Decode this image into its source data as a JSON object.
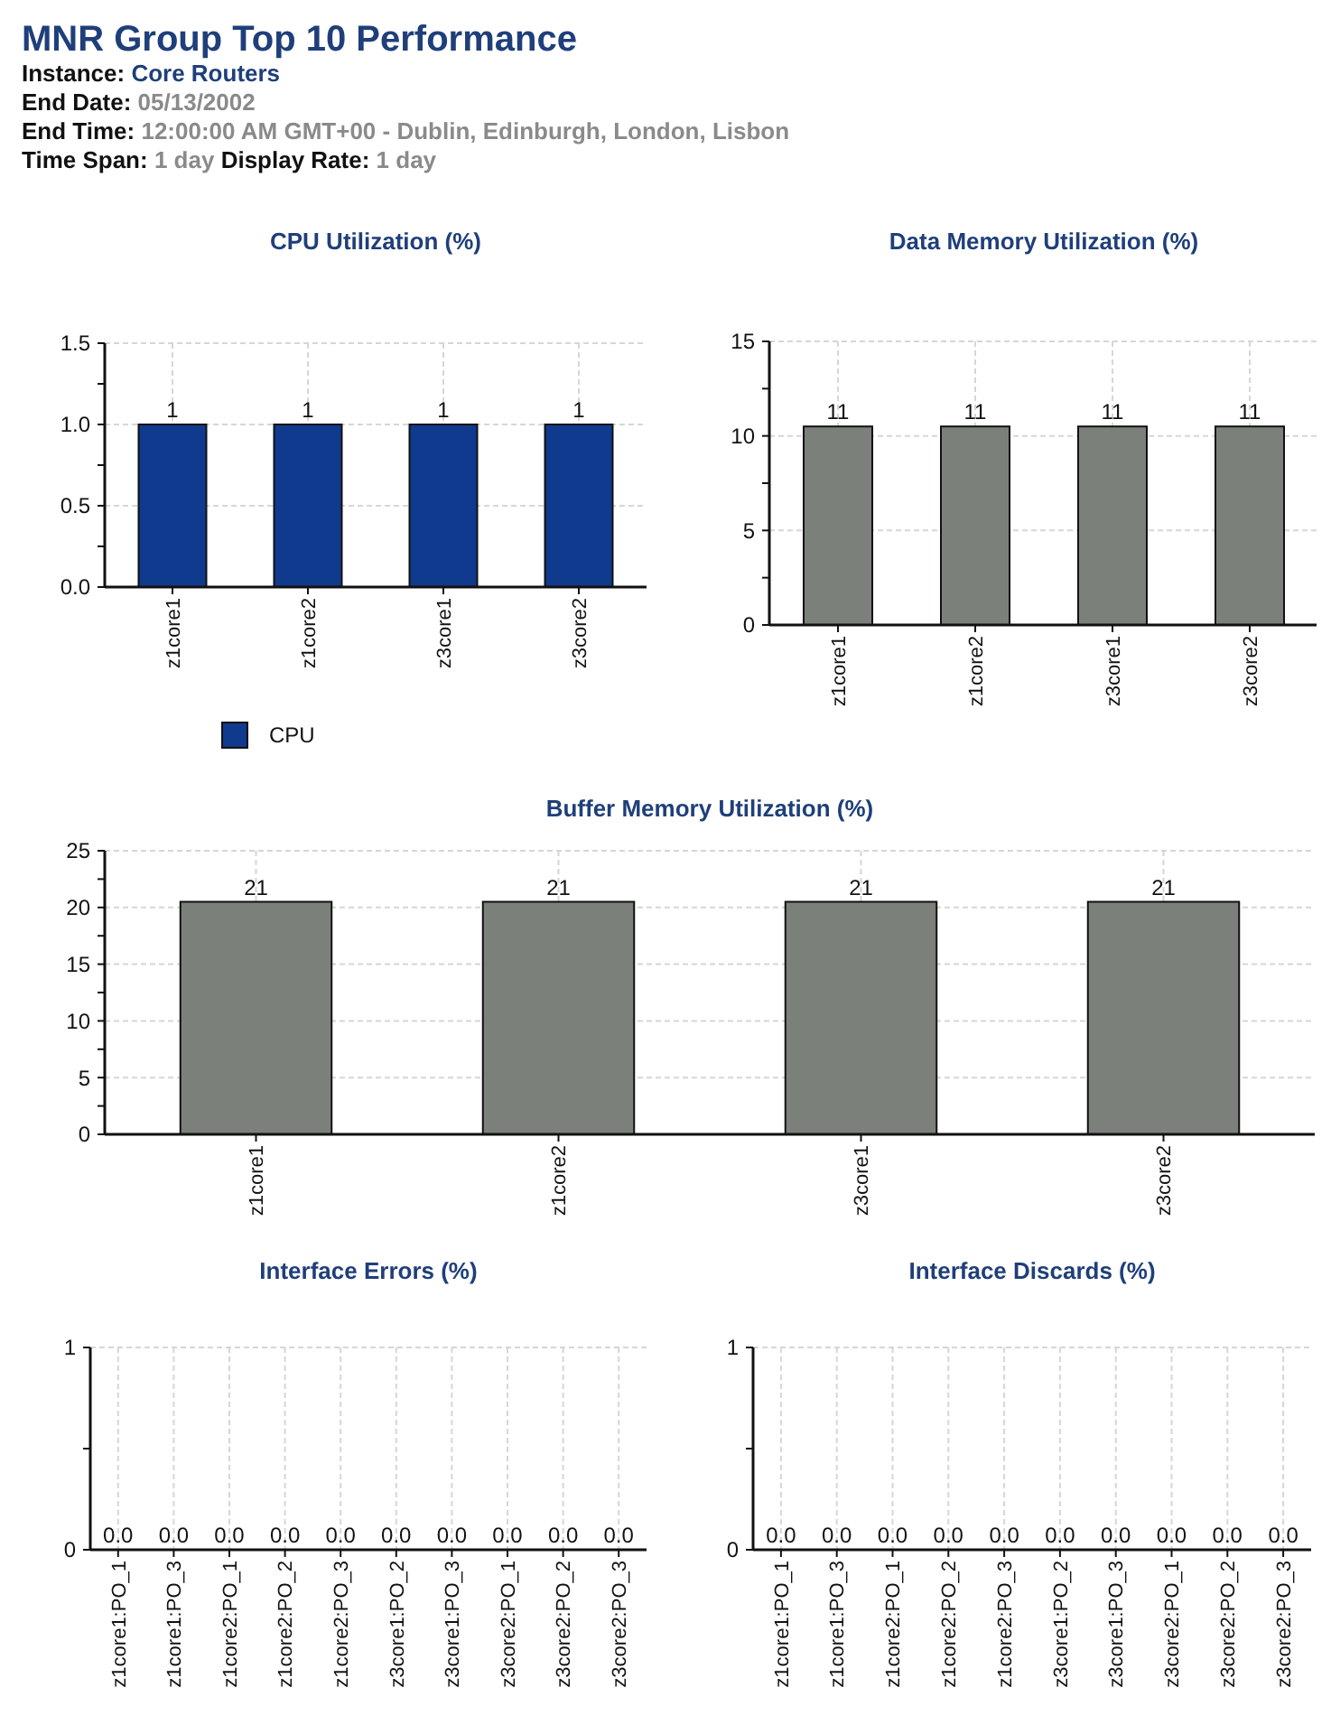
{
  "chart_data": [
    {
      "type": "other",
      "title": "MNR Group Top 10 Performance",
      "annotations": [
        "Instance: Core Routers",
        "End Date: 05/13/2002",
        "End Time: 12:00:00 AM GMT+00 - Dublin, Edinburgh, London, Lisbon",
        "Time Span: 1 day Display Rate: 1 day"
      ]
    },
    {
      "type": "bar",
      "title": "CPU Utilization (%)",
      "categories": [
        "z1core1",
        "z1core2",
        "z3core1",
        "z3core2"
      ],
      "series": [
        {
          "name": "CPU",
          "color": "#103a8e",
          "values": [
            1,
            1,
            1,
            1
          ],
          "value_labels": [
            "1",
            "1",
            "1",
            "1"
          ]
        }
      ],
      "ylim": [
        0,
        1.5
      ],
      "yticks": [
        {
          "value": 0,
          "label": "0.0"
        },
        {
          "value": 0.25,
          "label": null
        },
        {
          "value": 0.5,
          "label": "0.5"
        },
        {
          "value": 0.75,
          "label": null
        },
        {
          "value": 1,
          "label": "1.0"
        },
        {
          "value": 1.25,
          "label": null
        },
        {
          "value": 1.5,
          "label": "1.5"
        }
      ],
      "grid": true,
      "legend": "bottom"
    },
    {
      "type": "bar",
      "title": "Data Memory Utilization (%)",
      "categories": [
        "z1core1",
        "z1core2",
        "z3core1",
        "z3core2"
      ],
      "series": [
        {
          "color": "#7b807a",
          "values": [
            10.5,
            10.5,
            10.5,
            10.5
          ],
          "value_labels": [
            "11",
            "11",
            "11",
            "11"
          ]
        }
      ],
      "ylim": [
        0,
        15
      ],
      "yticks": [
        0,
        {
          "value": 2.5,
          "label": null
        },
        5,
        {
          "value": 7.5,
          "label": null
        },
        10,
        {
          "value": 12.5,
          "label": null
        },
        15
      ],
      "grid": true
    },
    {
      "type": "bar",
      "title": "Buffer Memory Utilization (%)",
      "categories": [
        "z1core1",
        "z1core2",
        "z3core1",
        "z3core2"
      ],
      "series": [
        {
          "color": "#7b807a",
          "values": [
            20.5,
            20.5,
            20.5,
            20.5
          ],
          "value_labels": [
            "21",
            "21",
            "21",
            "21"
          ]
        }
      ],
      "ylim": [
        0,
        25
      ],
      "yticks": [
        0,
        {
          "value": 2.5,
          "label": null
        },
        5,
        {
          "value": 7.5,
          "label": null
        },
        10,
        {
          "value": 12.5,
          "label": null
        },
        15,
        {
          "value": 17.5,
          "label": null
        },
        20,
        {
          "value": 22.5,
          "label": null
        },
        25
      ],
      "grid": true
    },
    {
      "type": "bar",
      "title": "Interface Errors (%)",
      "categories": [
        "z1core1:PO_1",
        "z1core1:PO_3",
        "z1core2:PO_1",
        "z1core2:PO_2",
        "z1core2:PO_3",
        "z3core1:PO_2",
        "z3core1:PO_3",
        "z3core2:PO_1",
        "z3core2:PO_2",
        "z3core2:PO_3"
      ],
      "series": [
        {
          "color": "#7b807a",
          "values": [
            0,
            0,
            0,
            0,
            0,
            0,
            0,
            0,
            0,
            0
          ],
          "value_labels": [
            "0.0",
            "0.0",
            "0.0",
            "0.0",
            "0.0",
            "0.0",
            "0.0",
            "0.0",
            "0.0",
            "0.0"
          ]
        }
      ],
      "ylim": [
        0,
        1
      ],
      "yticks": [
        0,
        {
          "value": 0.5,
          "label": null
        },
        1
      ],
      "grid": true
    },
    {
      "type": "bar",
      "title": "Interface Discards (%)",
      "categories": [
        "z1core1:PO_1",
        "z1core1:PO_3",
        "z1core2:PO_1",
        "z1core2:PO_2",
        "z1core2:PO_3",
        "z3core1:PO_2",
        "z3core1:PO_3",
        "z3core2:PO_1",
        "z3core2:PO_2",
        "z3core2:PO_3"
      ],
      "series": [
        {
          "color": "#7b807a",
          "values": [
            0,
            0,
            0,
            0,
            0,
            0,
            0,
            0,
            0,
            0
          ],
          "value_labels": [
            "0.0",
            "0.0",
            "0.0",
            "0.0",
            "0.0",
            "0.0",
            "0.0",
            "0.0",
            "0.0",
            "0.0"
          ]
        }
      ],
      "ylim": [
        0,
        1
      ],
      "yticks": [
        0,
        {
          "value": 0.5,
          "label": null
        },
        1
      ],
      "grid": true
    }
  ]
}
